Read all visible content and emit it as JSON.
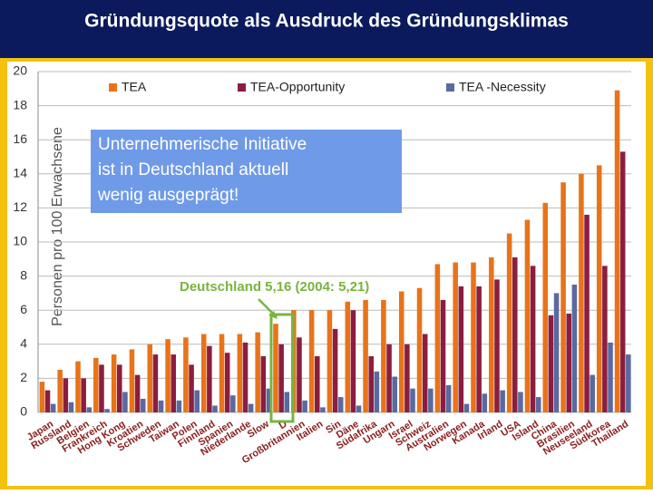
{
  "chart_data": {
    "type": "bar",
    "title": "Gründungsquote als Ausdruck des Gründungsklimas",
    "ylabel": "Personen pro 100 Erwachsene",
    "annotation_box": [
      "Unternehmerische Initiative",
      "ist in Deutschland aktuell",
      "wenig ausgeprägt!"
    ],
    "annotation": "Deutschland 5,16 (2004: 5,21)",
    "categories": [
      "Japan",
      "Russland",
      "Belgien",
      "Frankreich",
      "Hong Kong",
      "Kroatien",
      "Schweden",
      "Taiwan",
      "Polen",
      "Finnland",
      "Spanien",
      "Niederlande",
      "Slow",
      "D",
      "Großbritannien",
      "Italien",
      "Sin",
      "Däne",
      "Südafrika",
      "Ungarn",
      "Israel",
      "Schweiz",
      "Australien",
      "Norwegen",
      "Kanada",
      "Irland",
      "USA",
      "Island",
      "China",
      "Brasilien",
      "Neuseeland",
      "Südkorea",
      "Thailand"
    ],
    "series": [
      {
        "name": "TEA",
        "color": "#e8731a",
        "values": [
          1.8,
          2.5,
          3.0,
          3.2,
          3.4,
          3.7,
          4.0,
          4.3,
          4.4,
          4.6,
          4.6,
          4.6,
          4.7,
          5.2,
          6.0,
          6.0,
          6.0,
          6.5,
          6.6,
          6.6,
          7.1,
          7.3,
          8.7,
          8.8,
          8.8,
          9.1,
          10.5,
          11.3,
          12.3,
          13.5,
          14.0,
          14.5,
          18.9
        ]
      },
      {
        "name": "TEA-Opportunity",
        "color": "#8b1e3f",
        "values": [
          1.3,
          2.0,
          2.0,
          2.8,
          2.8,
          2.2,
          3.4,
          3.4,
          2.8,
          3.9,
          3.5,
          4.1,
          3.3,
          4.0,
          4.4,
          3.3,
          4.9,
          6.0,
          3.3,
          4.0,
          4.0,
          4.6,
          6.6,
          7.4,
          7.4,
          7.8,
          9.1,
          8.6,
          5.7,
          5.8,
          11.6,
          8.6,
          15.3
        ]
      },
      {
        "name": "TEA -Necessity",
        "color": "#5a6aa0",
        "values": [
          0.5,
          0.6,
          0.3,
          0.2,
          1.2,
          0.8,
          0.7,
          0.7,
          1.3,
          0.4,
          1.0,
          0.5,
          1.4,
          1.2,
          0.7,
          0.3,
          0.9,
          0.4,
          2.4,
          2.1,
          1.4,
          1.4,
          1.6,
          0.5,
          1.1,
          1.3,
          1.2,
          0.9,
          7.0,
          7.5,
          2.2,
          4.1,
          3.4
        ]
      }
    ],
    "ylim": [
      0,
      20
    ],
    "yticks": [
      0,
      2,
      4,
      6,
      8,
      10,
      12,
      14,
      16,
      18,
      20
    ],
    "grid": true,
    "legend": "top"
  }
}
